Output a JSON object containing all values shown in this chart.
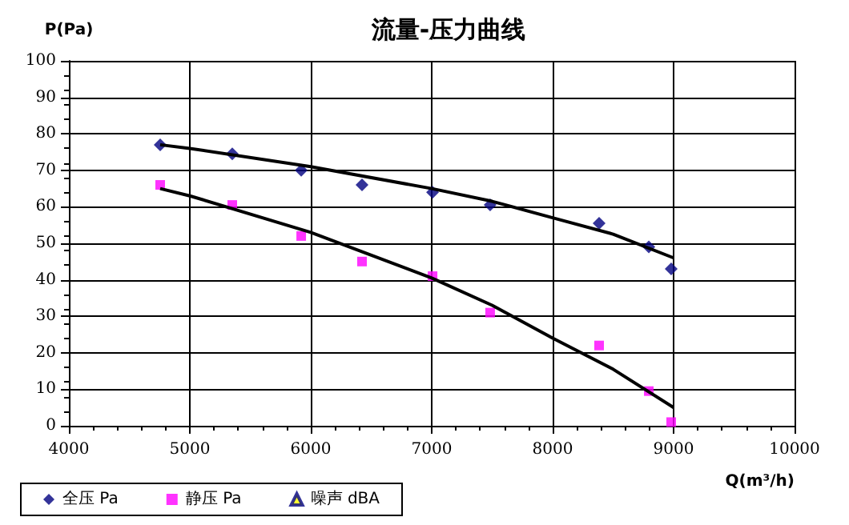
{
  "chart_data": {
    "type": "scatter",
    "title": "流量-压力曲线",
    "xlabel": "Q(m³/h)",
    "ylabel": "P(Pa)",
    "x": [
      4755,
      5351,
      5921,
      6424,
      7007,
      7483,
      8384,
      8795,
      8980
    ],
    "series": [
      {
        "name": "全压 Pa",
        "color": "#000080",
        "marker": "diamond",
        "values": [
          77,
          74.5,
          70,
          66,
          64,
          60.5,
          55.5,
          49,
          43
        ]
      },
      {
        "name": "静压 Pa",
        "color": "#ff00ff",
        "marker": "square",
        "values": [
          66,
          60.5,
          52,
          45,
          41,
          31,
          22,
          9.5,
          1
        ]
      },
      {
        "name": "噪声 dBA",
        "color": "#000080",
        "marker": "triangle",
        "values": [
          null,
          null,
          null,
          null,
          null,
          null,
          null,
          null,
          null
        ]
      },
      {
        "type": "line",
        "color": "#000000",
        "marker": "none",
        "x": [
          4755,
          5000,
          6000,
          7000,
          7500,
          8000,
          8500,
          9000
        ],
        "values": [
          77,
          76,
          71,
          65,
          61.5,
          57,
          52.5,
          46
        ]
      },
      {
        "type": "line",
        "color": "#000000",
        "marker": "none",
        "x": [
          4755,
          5000,
          6000,
          7000,
          7500,
          8000,
          8500,
          9000
        ],
        "values": [
          65,
          63,
          53,
          40.5,
          33,
          24,
          15.5,
          5
        ]
      }
    ],
    "xlim": [
      4000,
      10000
    ],
    "xticks": [
      4000,
      5000,
      6000,
      7000,
      8000,
      9000,
      10000
    ],
    "ylim": [
      0,
      100
    ],
    "yticks": [
      0,
      10,
      20,
      30,
      40,
      50,
      60,
      70,
      80,
      90,
      100
    ],
    "grid": true,
    "legend": "bottom left"
  }
}
